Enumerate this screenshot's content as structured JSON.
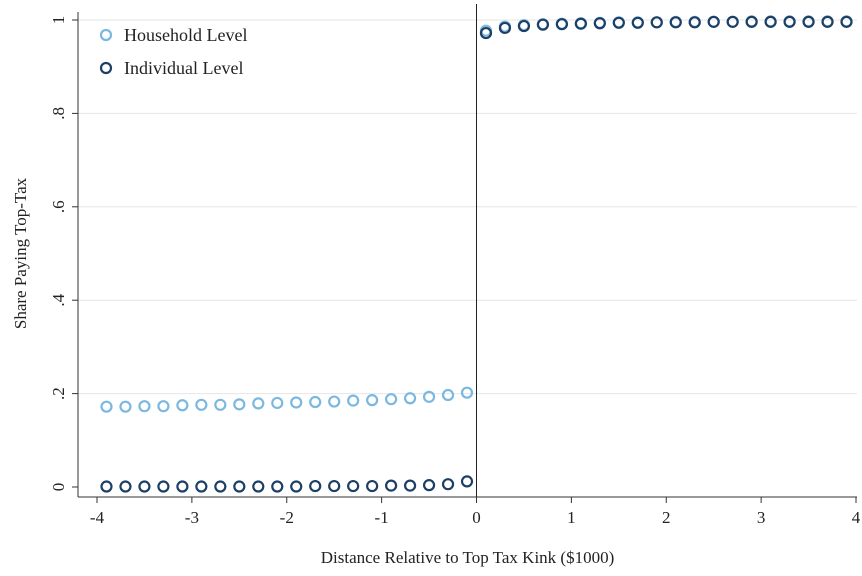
{
  "chart_data": {
    "type": "scatter",
    "title": "",
    "xlabel": "Distance Relative to Top Tax Kink ($1000)",
    "ylabel": "Share Paying Top-Tax",
    "xlim": [
      -4,
      4
    ],
    "ylim": [
      0,
      1
    ],
    "x_ticks": [
      -4,
      -3,
      -2,
      -1,
      0,
      1,
      2,
      3,
      4
    ],
    "x_tick_labels": [
      "-4",
      "-3",
      "-2",
      "-1",
      "0",
      "1",
      "2",
      "3",
      "4"
    ],
    "y_ticks": [
      0,
      0.2,
      0.4,
      0.6,
      0.8,
      1
    ],
    "y_tick_labels": [
      "0",
      ".2",
      ".4",
      ".6",
      ".8",
      "1"
    ],
    "grid": "horizontal",
    "vertical_line_at": 0,
    "legend_position": "top-left",
    "x": [
      -3.9,
      -3.7,
      -3.5,
      -3.3,
      -3.1,
      -2.9,
      -2.7,
      -2.5,
      -2.3,
      -2.1,
      -1.9,
      -1.7,
      -1.5,
      -1.3,
      -1.1,
      -0.9,
      -0.7,
      -0.5,
      -0.3,
      -0.1,
      0.1,
      0.3,
      0.5,
      0.7,
      0.9,
      1.1,
      1.3,
      1.5,
      1.7,
      1.9,
      2.1,
      2.3,
      2.5,
      2.7,
      2.9,
      3.1,
      3.3,
      3.5,
      3.7,
      3.9
    ],
    "series": [
      {
        "name": "Household Level",
        "color": "#7ab8e0",
        "values": [
          0.172,
          0.172,
          0.173,
          0.173,
          0.175,
          0.176,
          0.176,
          0.177,
          0.179,
          0.18,
          0.181,
          0.182,
          0.183,
          0.185,
          0.186,
          0.188,
          0.19,
          0.193,
          0.197,
          0.202,
          0.977,
          0.986,
          0.989,
          0.991,
          0.992,
          0.993,
          0.994,
          0.995,
          0.995,
          0.995,
          0.996,
          0.996,
          0.996,
          0.996,
          0.997,
          0.997,
          0.997,
          0.997,
          0.997,
          0.997
        ]
      },
      {
        "name": "Individual Level",
        "color": "#1c3f66",
        "values": [
          0.001,
          0.001,
          0.001,
          0.001,
          0.001,
          0.001,
          0.001,
          0.001,
          0.001,
          0.001,
          0.001,
          0.002,
          0.002,
          0.002,
          0.002,
          0.003,
          0.003,
          0.004,
          0.006,
          0.012,
          0.972,
          0.983,
          0.987,
          0.99,
          0.991,
          0.992,
          0.993,
          0.994,
          0.994,
          0.995,
          0.995,
          0.995,
          0.996,
          0.996,
          0.996,
          0.996,
          0.996,
          0.996,
          0.996,
          0.996
        ]
      }
    ],
    "colors": {
      "grid": "#e6e6e6",
      "axis": "#333333",
      "vline": "#222222"
    }
  }
}
